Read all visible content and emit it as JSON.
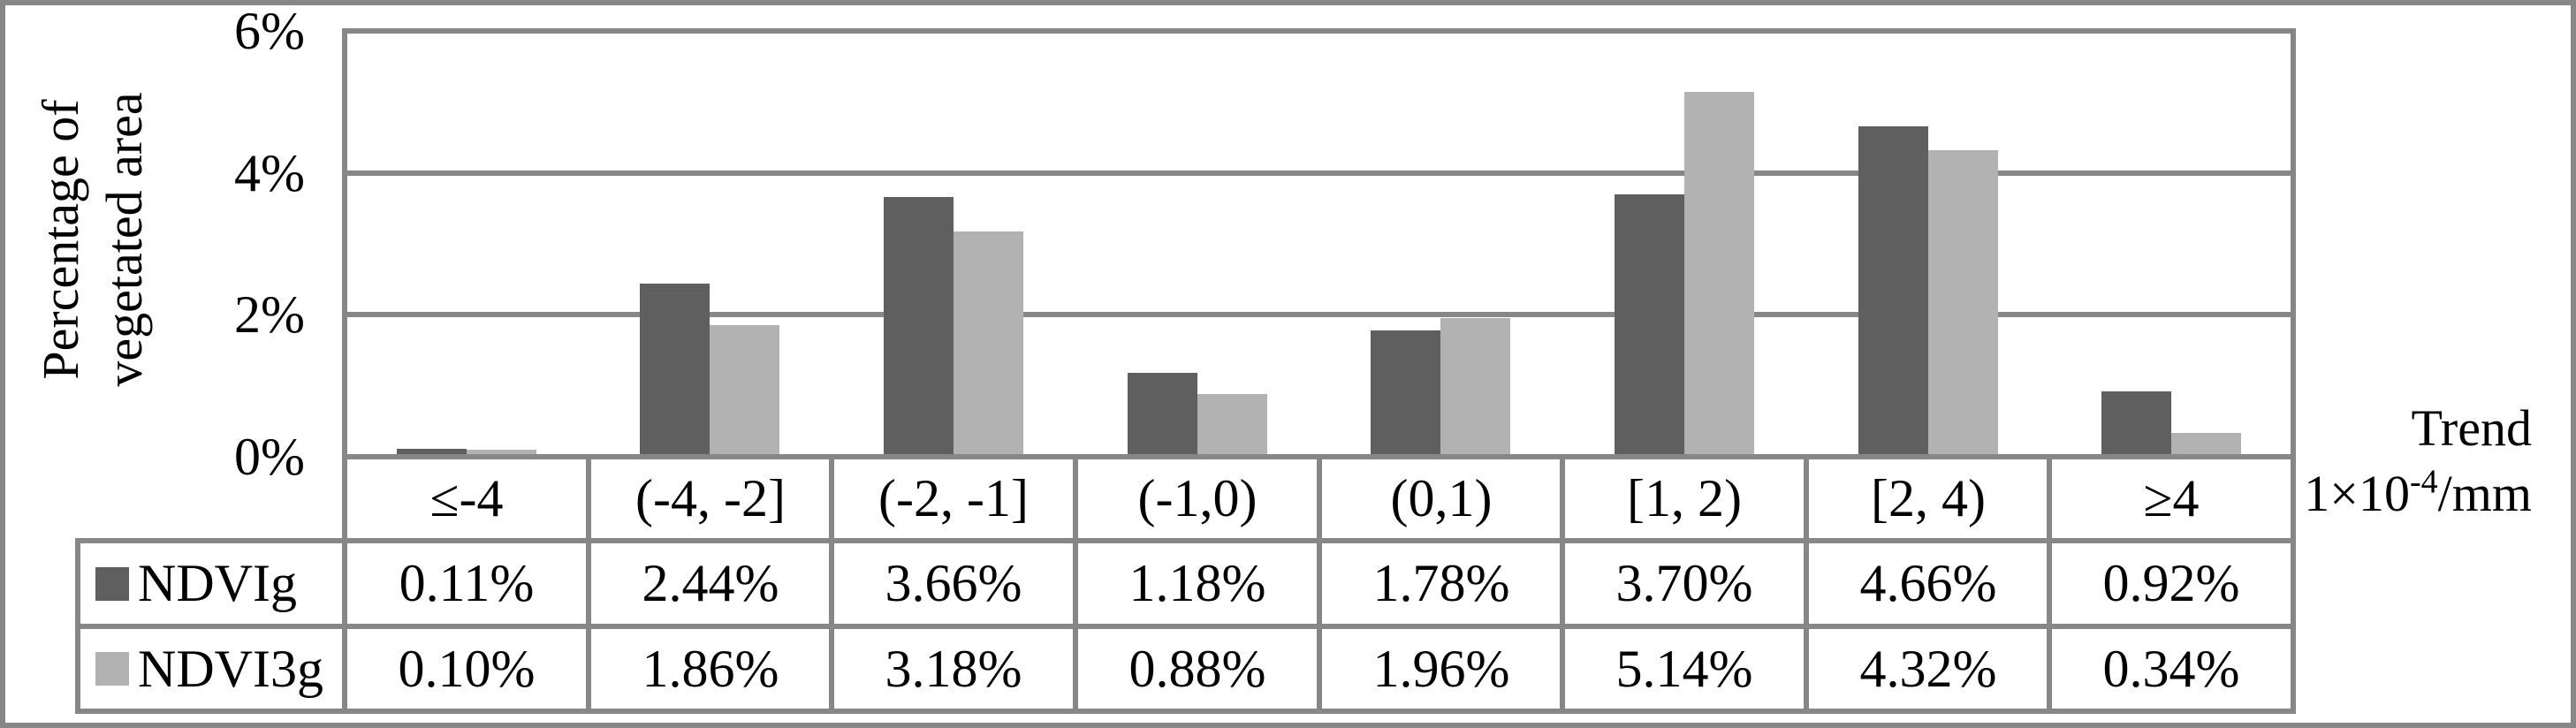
{
  "figure": {
    "y_axis_title": [
      "Percentage of",
      "vegetated area"
    ],
    "x_axis_unit": {
      "line1": "Trend",
      "prefix": "1×10",
      "exponent": "-4",
      "suffix": "/mm"
    }
  },
  "chart_data": {
    "type": "bar",
    "title": "",
    "ylabel": "Percentage of vegetated area",
    "xlabel": "Trend 1×10⁻⁴/mm",
    "ylim": [
      0,
      6
    ],
    "grid": true,
    "legend_position": "table-left",
    "categories": [
      "≤-4",
      "(-4, -2]",
      "(-2, -1]",
      "(-1,0)",
      "(0,1)",
      "[1, 2)",
      "[2, 4)",
      "≥4"
    ],
    "yticks": [
      {
        "value": 6,
        "label": "6%"
      },
      {
        "value": 4,
        "label": "4%"
      },
      {
        "value": 2,
        "label": "2%"
      },
      {
        "value": 0,
        "label": "0%"
      }
    ],
    "series": [
      {
        "name": "NDVIg",
        "color": "#5f5f5f",
        "values": [
          0.11,
          2.44,
          3.66,
          1.18,
          1.78,
          3.7,
          4.66,
          0.92
        ],
        "labels": [
          "0.11%",
          "2.44%",
          "3.66%",
          "1.18%",
          "1.78%",
          "3.70%",
          "4.66%",
          "0.92%"
        ]
      },
      {
        "name": "NDVI3g",
        "color": "#b2b2b2",
        "values": [
          0.1,
          1.86,
          3.18,
          0.88,
          1.96,
          5.14,
          4.32,
          0.34
        ],
        "labels": [
          "0.10%",
          "1.86%",
          "3.18%",
          "0.88%",
          "1.96%",
          "5.14%",
          "4.32%",
          "0.34%"
        ]
      }
    ]
  },
  "colors": {
    "bar_dark": "#5f5f5f",
    "bar_light": "#b2b2b2",
    "line": "#878787",
    "text": "#000000",
    "background": "#ffffff"
  }
}
